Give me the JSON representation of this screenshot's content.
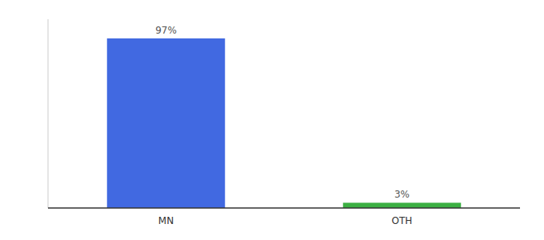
{
  "chart_data": {
    "type": "bar",
    "categories": [
      "MN",
      "OTH"
    ],
    "values": [
      97,
      3
    ],
    "value_labels": [
      "97%",
      "3%"
    ],
    "colors": [
      "#4169e1",
      "#3cb043"
    ],
    "ylim": [
      0,
      108
    ],
    "data_labels": true,
    "tick_labels": "x",
    "grid": false
  }
}
